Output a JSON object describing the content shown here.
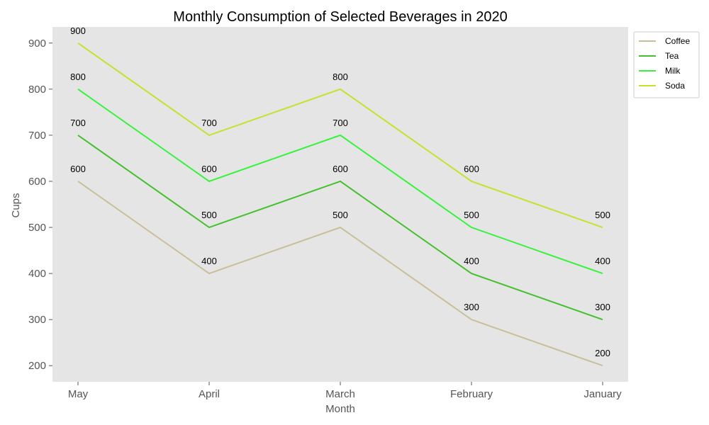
{
  "chart_data": {
    "type": "line",
    "title": "Monthly Consumption of Selected Beverages in 2020",
    "xlabel": "Month",
    "ylabel": "Cups",
    "categories": [
      "May",
      "April",
      "March",
      "February",
      "January"
    ],
    "ylim": [
      165,
      935
    ],
    "yticks": [
      200,
      300,
      400,
      500,
      600,
      700,
      800,
      900
    ],
    "grid": false,
    "legend_position": "top-right outside",
    "series": [
      {
        "name": "Coffee",
        "color": "#c8bf9a",
        "values": [
          600,
          400,
          500,
          300,
          200
        ]
      },
      {
        "name": "Tea",
        "color": "#44c02c",
        "values": [
          700,
          500,
          600,
          400,
          300
        ]
      },
      {
        "name": "Milk",
        "color": "#36f23c",
        "values": [
          800,
          600,
          700,
          500,
          400
        ]
      },
      {
        "name": "Soda",
        "color": "#c8e02c",
        "values": [
          900,
          700,
          800,
          600,
          500
        ]
      }
    ],
    "plot_background": "#e5e5e5"
  }
}
